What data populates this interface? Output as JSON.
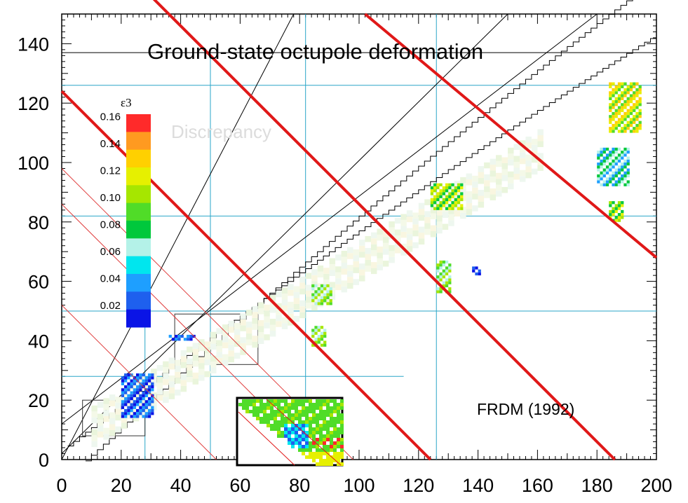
{
  "chart_data": {
    "type": "heatmap",
    "title": "Ground-state octupole deformation",
    "annotation_model": "FRDM (1992)",
    "annotation_ghost": "Discrepancy",
    "xlabel": "",
    "ylabel": "",
    "xlim": [
      0,
      200
    ],
    "ylim": [
      0,
      150
    ],
    "x_ticks": [
      0,
      20,
      40,
      60,
      80,
      100,
      120,
      140,
      160,
      180,
      200
    ],
    "y_ticks": [
      0,
      20,
      40,
      60,
      80,
      100,
      120,
      140
    ],
    "colorbar": {
      "title": "ε3",
      "colors": [
        "#0a14e6",
        "#1e60ee",
        "#1e9fff",
        "#00e6ee",
        "#b4f2e8",
        "#00c83c",
        "#50dc28",
        "#a6e600",
        "#e6f000",
        "#ffd000",
        "#ff9a20",
        "#ff2a2a"
      ],
      "labels": [
        "0.02",
        "0.04",
        "0.06",
        "0.08",
        "0.10",
        "0.12",
        "0.14",
        "0.16"
      ]
    },
    "magic_numbers": [
      8,
      20,
      28,
      50,
      82,
      126
    ],
    "red_lines_thick": [
      [
        0,
        124
      ],
      [
        0,
        186
      ]
    ],
    "red_lines_thin": [
      [
        0,
        98
      ],
      [
        0,
        86
      ],
      [
        0,
        52
      ]
    ],
    "regions": [
      {
        "x": [
          20,
          30
        ],
        "y": [
          14,
          28
        ],
        "value": 0.02
      },
      {
        "x": [
          36,
          44
        ],
        "y": [
          40,
          41
        ],
        "value": 0.02
      },
      {
        "x": [
          84,
          90
        ],
        "y": [
          52,
          58
        ],
        "value": 0.09
      },
      {
        "x": [
          84,
          88
        ],
        "y": [
          38,
          44
        ],
        "value": 0.09
      },
      {
        "x": [
          124,
          134
        ],
        "y": [
          84,
          92
        ],
        "value": 0.1
      },
      {
        "x": [
          126,
          130
        ],
        "y": [
          56,
          66
        ],
        "value": 0.09
      },
      {
        "x": [
          138,
          140
        ],
        "y": [
          62,
          64
        ],
        "value": 0.02
      },
      {
        "x": [
          184,
          194
        ],
        "y": [
          110,
          126
        ],
        "value": 0.12
      },
      {
        "x": [
          180,
          190
        ],
        "y": [
          92,
          104
        ],
        "value": 0.06
      },
      {
        "x": [
          184,
          188
        ],
        "y": [
          80,
          86
        ],
        "value": 0.1
      }
    ]
  }
}
